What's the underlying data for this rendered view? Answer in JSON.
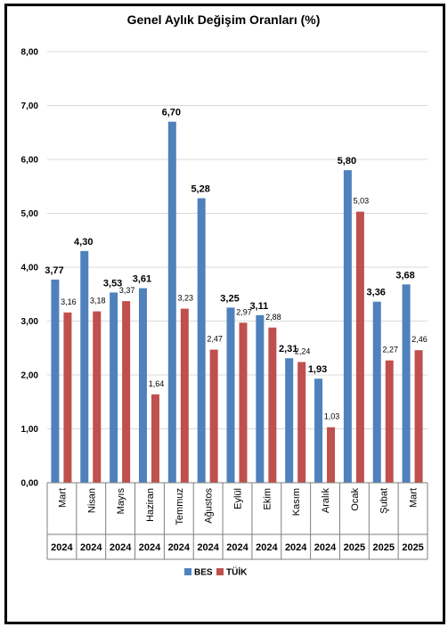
{
  "chart_data": {
    "type": "bar",
    "title": "Genel Aylık Değişim Oranları (%)",
    "categories": [
      "Mart",
      "Nisan",
      "Mayıs",
      "Haziran",
      "Temmuz",
      "Ağustos",
      "Eylül",
      "Ekim",
      "Kasım",
      "Aralık",
      "Ocak",
      "Şubat",
      "Mart"
    ],
    "years": [
      "2024",
      "2024",
      "2024",
      "2024",
      "2024",
      "2024",
      "2024",
      "2024",
      "2024",
      "2024",
      "2025",
      "2025",
      "2025"
    ],
    "series": [
      {
        "name": "BES",
        "color": "#4f81bd",
        "values": [
          3.77,
          4.3,
          3.53,
          3.61,
          6.7,
          5.28,
          3.25,
          3.11,
          2.31,
          1.93,
          5.8,
          3.36,
          3.68
        ],
        "labels": [
          "3,77",
          "4,30",
          "3,53",
          "3,61",
          "6,70",
          "5,28",
          "3,25",
          "3,11",
          "2,31",
          "1,93",
          "5,80",
          "3,36",
          "3,68"
        ]
      },
      {
        "name": "TÜİK",
        "color": "#c0504d",
        "values": [
          3.16,
          3.18,
          3.37,
          1.64,
          3.23,
          2.47,
          2.97,
          2.88,
          2.24,
          1.03,
          5.03,
          2.27,
          2.46
        ],
        "labels": [
          "3,16",
          "3,18",
          "3,37",
          "1,64",
          "3,23",
          "2,47",
          "2,97",
          "2,88",
          "2,24",
          "1,03",
          "5,03",
          "2,27",
          "2,46"
        ]
      }
    ],
    "ylim": [
      0,
      8
    ],
    "yticks": [
      "0,00",
      "1,00",
      "2,00",
      "3,00",
      "4,00",
      "5,00",
      "6,00",
      "7,00",
      "8,00"
    ],
    "grid": true,
    "legend_position": "bottom-center"
  }
}
